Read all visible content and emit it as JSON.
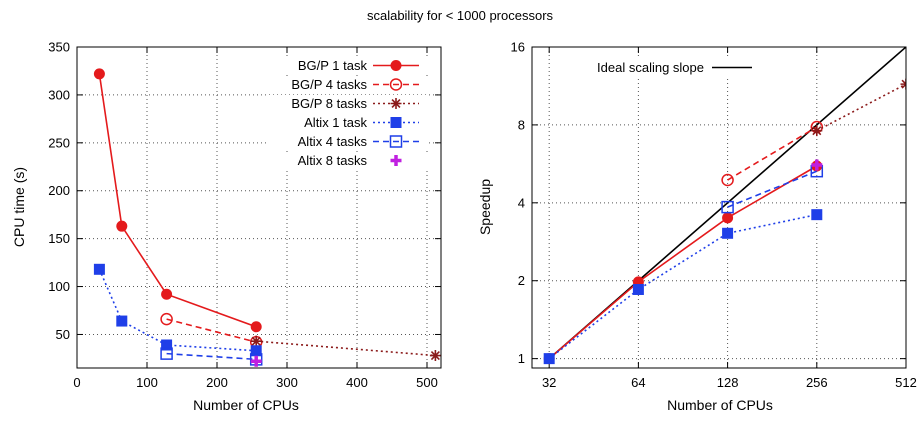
{
  "figure_title": "scalability for < 1000 processors",
  "chart_data": [
    {
      "type": "line",
      "xlabel": "Number of CPUs",
      "ylabel": "CPU time (s)",
      "xlim": [
        0,
        520
      ],
      "ylim": [
        15,
        350
      ],
      "x_ticks": [
        0,
        100,
        200,
        300,
        400,
        500
      ],
      "y_ticks": [
        50,
        100,
        150,
        200,
        250,
        300,
        350
      ],
      "grid": true,
      "legend_position": "top-right",
      "series": [
        {
          "name": "BG/P 1 task",
          "color": "#e41a1c",
          "dash": "",
          "marker": "filled-circle",
          "points": [
            [
              32,
              322
            ],
            [
              64,
              163
            ],
            [
              128,
              92
            ],
            [
              256,
              58
            ]
          ]
        },
        {
          "name": "BG/P 4 tasks",
          "color": "#e41a1c",
          "dash": "6,4",
          "marker": "open-circle",
          "points": [
            [
              128,
              66
            ],
            [
              256,
              42
            ]
          ]
        },
        {
          "name": "BG/P 8 tasks",
          "color": "#8b1a1a",
          "dash": "2,3",
          "marker": "asterisk",
          "points": [
            [
              256,
              43
            ],
            [
              512,
              28
            ]
          ]
        },
        {
          "name": "Altix 1 task",
          "color": "#1f3fe8",
          "dash": "2,3",
          "marker": "filled-square",
          "points": [
            [
              32,
              118
            ],
            [
              64,
              64
            ],
            [
              128,
              39
            ],
            [
              256,
              33
            ]
          ]
        },
        {
          "name": "Altix 4 tasks",
          "color": "#1f3fe8",
          "dash": "6,4",
          "marker": "open-square",
          "points": [
            [
              128,
              30
            ],
            [
              256,
              24
            ]
          ]
        },
        {
          "name": "Altix 8 tasks",
          "color": "#c020e0",
          "dash": "",
          "marker": "plus",
          "points": [
            [
              256,
              22
            ]
          ]
        }
      ]
    },
    {
      "type": "line",
      "xlabel": "Number of CPUs",
      "ylabel": "Speedup",
      "x_scale": "log2",
      "y_scale": "log2",
      "xlim": [
        28,
        512
      ],
      "ylim": [
        0.92,
        16
      ],
      "x_ticks": [
        32,
        64,
        128,
        256,
        512
      ],
      "y_ticks": [
        1,
        2,
        4,
        8,
        16
      ],
      "grid": true,
      "legend_position": "top-left",
      "series": [
        {
          "name": "Ideal scaling slope",
          "color": "#000000",
          "dash": "",
          "marker": "none",
          "points": [
            [
              32,
              1
            ],
            [
              512,
              16
            ]
          ]
        },
        {
          "name": "BG/P 1 task",
          "color": "#e41a1c",
          "dash": "",
          "marker": "filled-circle",
          "points": [
            [
              32,
              1
            ],
            [
              64,
              1.98
            ],
            [
              128,
              3.5
            ],
            [
              256,
              5.55
            ]
          ]
        },
        {
          "name": "BG/P 4 tasks",
          "color": "#e41a1c",
          "dash": "6,4",
          "marker": "open-circle",
          "points": [
            [
              128,
              4.9
            ],
            [
              256,
              7.85
            ]
          ]
        },
        {
          "name": "BG/P 8 tasks",
          "color": "#8b1a1a",
          "dash": "2,3",
          "marker": "asterisk",
          "points": [
            [
              256,
              7.6
            ],
            [
              512,
              11.5
            ]
          ]
        },
        {
          "name": "Altix 1 task",
          "color": "#1f3fe8",
          "dash": "2,3",
          "marker": "filled-square",
          "points": [
            [
              32,
              1
            ],
            [
              64,
              1.85
            ],
            [
              128,
              3.05
            ],
            [
              256,
              3.6
            ]
          ]
        },
        {
          "name": "Altix 4 tasks",
          "color": "#1f3fe8",
          "dash": "6,4",
          "marker": "open-square",
          "points": [
            [
              128,
              3.85
            ],
            [
              256,
              5.3
            ]
          ]
        },
        {
          "name": "Altix 8 tasks",
          "color": "#c020e0",
          "dash": "",
          "marker": "plus",
          "points": [
            [
              256,
              5.6
            ]
          ]
        }
      ]
    }
  ]
}
